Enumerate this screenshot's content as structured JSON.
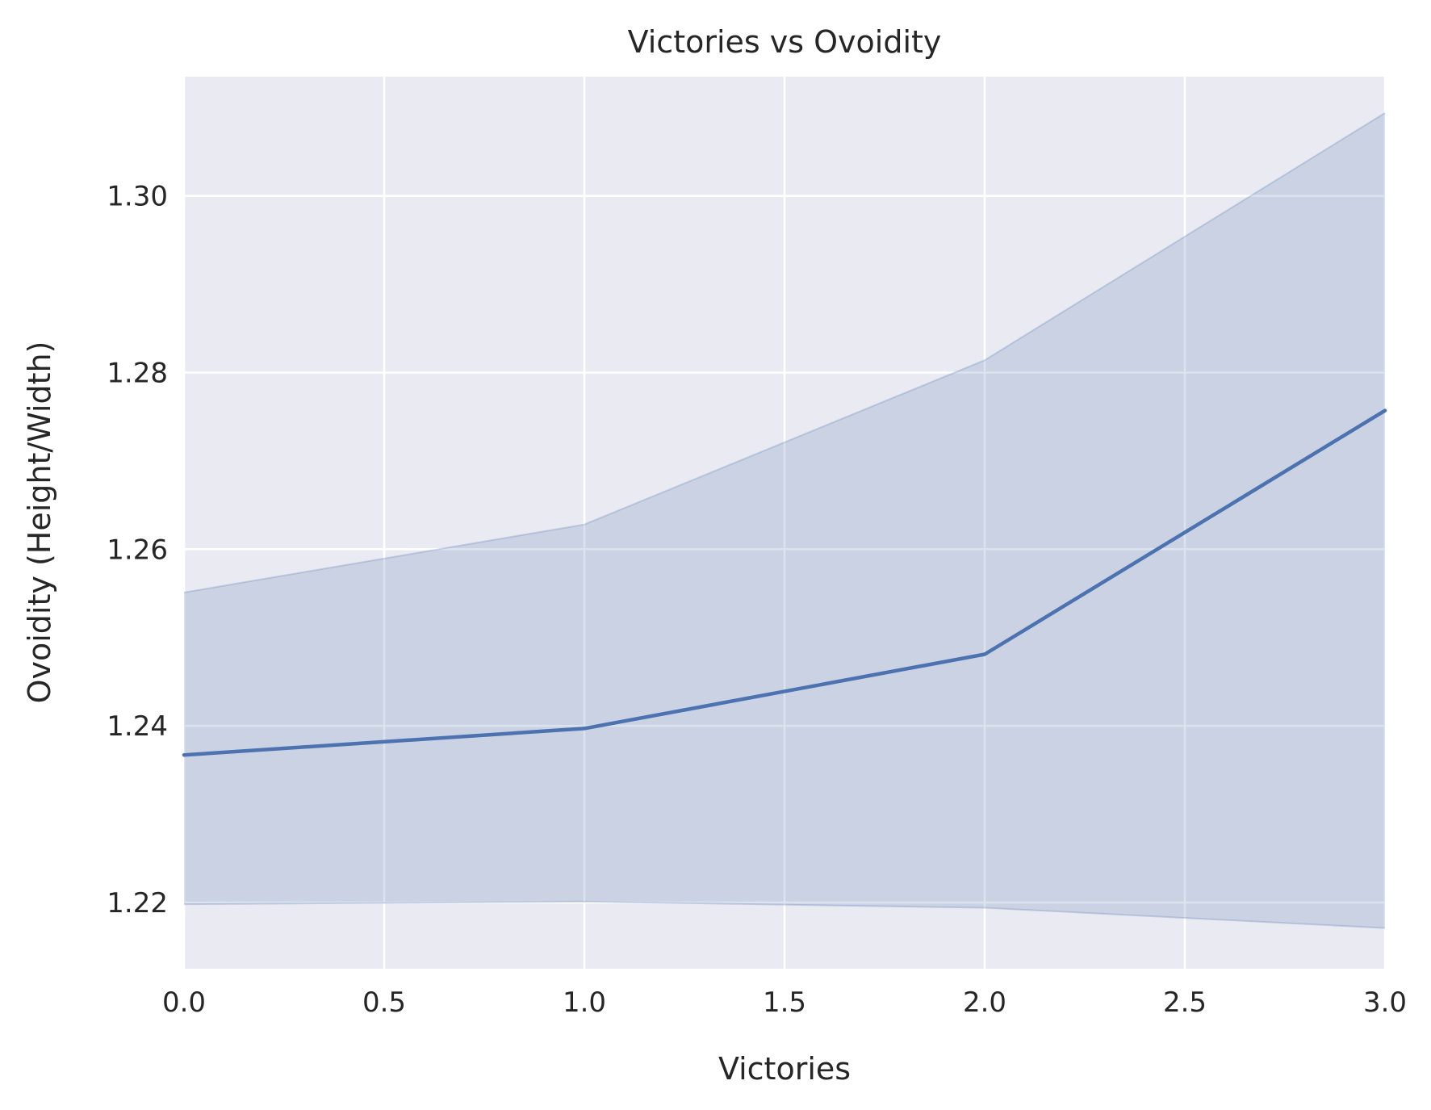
{
  "chart_data": {
    "type": "line",
    "title": "Victories vs Ovoidity",
    "xlabel": "Victories",
    "ylabel": "Ovoidity (Height/Width)",
    "xlim": [
      0,
      3
    ],
    "ylim": [
      1.2125,
      1.3135
    ],
    "xticks": [
      {
        "value": 0,
        "label": "0.0"
      },
      {
        "value": 0.5,
        "label": "0.5"
      },
      {
        "value": 1,
        "label": "1.0"
      },
      {
        "value": 1.5,
        "label": "1.5"
      },
      {
        "value": 2,
        "label": "2.0"
      },
      {
        "value": 2.5,
        "label": "2.5"
      },
      {
        "value": 3,
        "label": "3.0"
      }
    ],
    "yticks": [
      {
        "value": 1.22,
        "label": "1.22"
      },
      {
        "value": 1.24,
        "label": "1.24"
      },
      {
        "value": 1.26,
        "label": "1.26"
      },
      {
        "value": 1.28,
        "label": "1.28"
      },
      {
        "value": 1.3,
        "label": "1.30"
      }
    ],
    "grid": true,
    "series": [
      {
        "x": [
          0,
          1,
          2,
          3
        ],
        "y": [
          1.2367,
          1.2397,
          1.2481,
          1.2757
        ],
        "ci_lower": [
          1.2198,
          1.2201,
          1.2194,
          1.2171
        ],
        "ci_upper": [
          1.2551,
          1.2628,
          1.2814,
          1.3094
        ]
      }
    ],
    "colors": {
      "line": "#4c72b0",
      "band": "#4c72b0",
      "plot_background": "#eaeaf2",
      "grid": "#ffffff"
    }
  }
}
